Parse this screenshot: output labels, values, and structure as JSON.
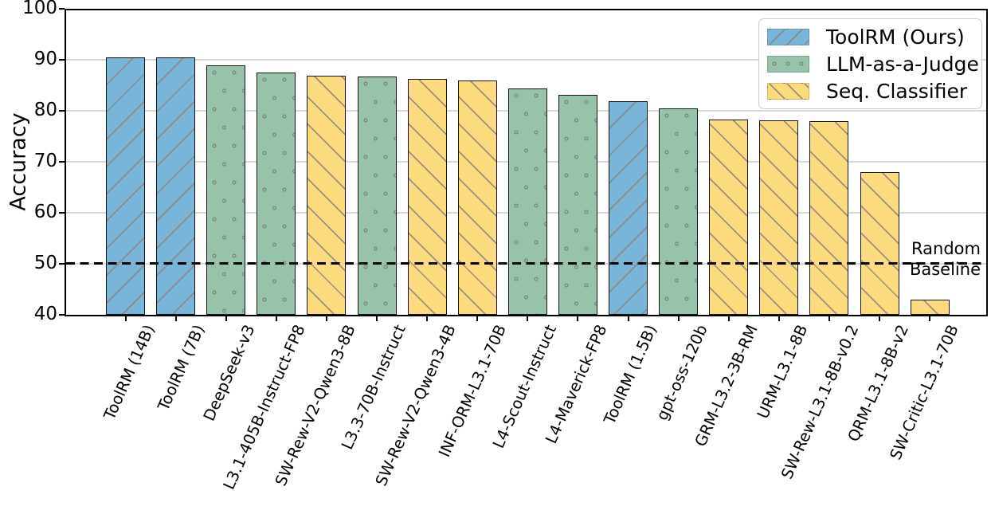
{
  "chart_data": {
    "type": "bar",
    "title": "",
    "xlabel": "",
    "ylabel": "Accuracy",
    "ylim": [
      40,
      100
    ],
    "yticks": [
      40,
      50,
      60,
      70,
      80,
      90,
      100
    ],
    "grid": "horizontal gridlines at 50-90, light gray; full box frame",
    "legend_position": "upper right",
    "baseline": {
      "value": 50,
      "label_line1": "Random",
      "label_line2": "Baseline"
    },
    "groups": [
      {
        "id": "toolrm",
        "label": "ToolRM (Ours)",
        "color": "#79b5d8",
        "hatch": "/"
      },
      {
        "id": "judge",
        "label": "LLM-as-a-Judge",
        "color": "#96c3aa",
        "hatch": "o"
      },
      {
        "id": "seq",
        "label": "Seq. Classifier",
        "color": "#fbdb7d",
        "hatch": "\\"
      }
    ],
    "bars": [
      {
        "label": "ToolRM (14B)",
        "value": 90.4,
        "group": "toolrm"
      },
      {
        "label": "ToolRM (7B)",
        "value": 90.4,
        "group": "toolrm"
      },
      {
        "label": "DeepSeek-v3",
        "value": 88.9,
        "group": "judge"
      },
      {
        "label": "L3.1-405B-Instruct-FP8",
        "value": 87.5,
        "group": "judge"
      },
      {
        "label": "SW-Rew-V2-Qwen3-8B",
        "value": 86.9,
        "group": "seq"
      },
      {
        "label": "L3.3-70B-Instruct",
        "value": 86.7,
        "group": "judge"
      },
      {
        "label": "SW-Rew-V2-Qwen3-4B",
        "value": 86.3,
        "group": "seq"
      },
      {
        "label": "INF-ORM-L3.1-70B",
        "value": 86.0,
        "group": "seq"
      },
      {
        "label": "L4-Scout-Instruct",
        "value": 84.4,
        "group": "judge"
      },
      {
        "label": "L4-Maverick-FP8",
        "value": 83.1,
        "group": "judge"
      },
      {
        "label": "ToolRM (1.5B)",
        "value": 81.9,
        "group": "toolrm"
      },
      {
        "label": "gpt-oss-120b",
        "value": 80.5,
        "group": "judge"
      },
      {
        "label": "GRM-L3.2-3B-RM",
        "value": 78.3,
        "group": "seq"
      },
      {
        "label": "URM-L3.1-8B",
        "value": 78.1,
        "group": "seq"
      },
      {
        "label": "SW-Rew-L3.1-8B-v0.2",
        "value": 77.9,
        "group": "seq"
      },
      {
        "label": "QRM-L3.1-8B-v2",
        "value": 67.9,
        "group": "seq"
      },
      {
        "label": "SW-Critic-L3.1-70B",
        "value": 43.0,
        "group": "seq"
      }
    ]
  }
}
